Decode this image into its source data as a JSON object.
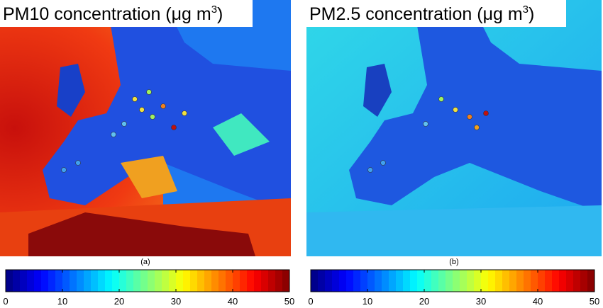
{
  "panels": [
    {
      "title": {
        "text": "PM10 concentration (μg m",
        "superscript": "3",
        "close": ")"
      },
      "label": "(a)",
      "colorbar": {
        "lim": [
          0,
          50
        ],
        "ticks": [
          0,
          10,
          20,
          30,
          40,
          50
        ]
      }
    },
    {
      "title": {
        "text": "PM2.5 concentration (μg m",
        "superscript": "3",
        "close": ")"
      },
      "label": "(b)",
      "colorbar": {
        "lim": [
          0,
          50
        ],
        "ticks": [
          0,
          10,
          20,
          30,
          40,
          50
        ]
      }
    }
  ]
}
